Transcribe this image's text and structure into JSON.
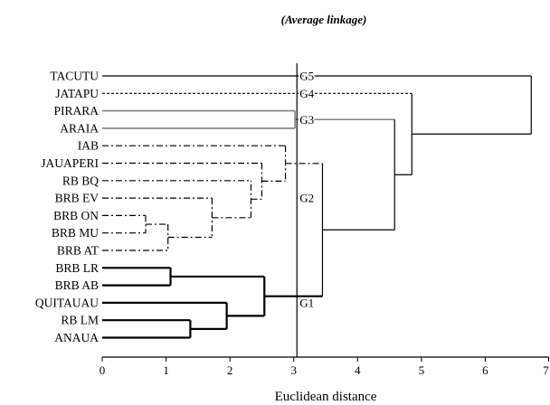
{
  "chart_data": {
    "type": "dendrogram",
    "title": "(Average linkage)",
    "xlabel": "Euclidean distance",
    "xlim": [
      0,
      7
    ],
    "xticks": [
      0,
      1,
      2,
      3,
      4,
      5,
      6,
      7
    ],
    "cut_line": 3.05,
    "leaves": [
      "TACUTU",
      "JATAPU",
      "PIRARA",
      "ARAIA",
      "IAB",
      "JAUAPERI",
      "RB BQ",
      "BRB EV",
      "BRB ON",
      "BRB MU",
      "BRB AT",
      "BRB LR",
      "BRB AB",
      "QUITAUAU",
      "RB LM",
      "ANAUA"
    ],
    "groups": [
      {
        "label": "G5",
        "members": [
          "TACUTU"
        ],
        "line_style": "solid",
        "line_color": "#000000"
      },
      {
        "label": "G4",
        "members": [
          "JATAPU"
        ],
        "line_style": "dotted",
        "line_color": "#000000"
      },
      {
        "label": "G3",
        "members": [
          "PIRARA",
          "ARAIA"
        ],
        "line_style": "solid",
        "line_color": "#808080"
      },
      {
        "label": "G2",
        "members": [
          "IAB",
          "JAUAPERI",
          "RB BQ",
          "BRB EV",
          "BRB ON",
          "BRB MU",
          "BRB AT"
        ],
        "line_style": "dashdot",
        "line_color": "#000000"
      },
      {
        "label": "G1",
        "members": [
          "BRB LR",
          "BRB AB",
          "QUITAUAU",
          "RB LM",
          "ANAUA"
        ],
        "line_style": "solid-bold",
        "line_color": "#000000"
      }
    ],
    "merges": [
      {
        "id": "m1",
        "left": "BRB LR",
        "right": "BRB AB",
        "height": 1.07
      },
      {
        "id": "m2",
        "left": "RB LM",
        "right": "ANAUA",
        "height": 1.38
      },
      {
        "id": "m3",
        "left": "QUITAUAU",
        "right": "m2",
        "height": 1.95
      },
      {
        "id": "m4",
        "left": "m1",
        "right": "m3",
        "height": 2.54
      },
      {
        "id": "m5",
        "left": "BRB ON",
        "right": "BRB MU",
        "height": 0.68
      },
      {
        "id": "m6",
        "left": "m5",
        "right": "BRB AT",
        "height": 1.03
      },
      {
        "id": "m7",
        "left": "BRB EV",
        "right": "m6",
        "height": 1.72
      },
      {
        "id": "m8",
        "left": "m7",
        "right": "RB BQ",
        "height": 2.33
      },
      {
        "id": "m9",
        "left": "JAUAPERI",
        "right": "m8",
        "height": 2.5
      },
      {
        "id": "m10",
        "left": "IAB",
        "right": "m9",
        "height": 2.87
      },
      {
        "id": "m11",
        "left": "PIRARA",
        "right": "ARAIA",
        "height": 3.02
      },
      {
        "id": "m12",
        "left": "m10",
        "right": "m4",
        "height": 3.45
      },
      {
        "id": "m13",
        "left": "m11",
        "right": "m12",
        "height": 4.58
      },
      {
        "id": "m14",
        "left": "JATAPU",
        "right": "m13",
        "height": 4.85
      },
      {
        "id": "m15",
        "left": "TACUTU",
        "right": "m14",
        "height": 6.72
      }
    ]
  }
}
